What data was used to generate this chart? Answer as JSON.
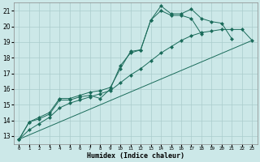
{
  "xlabel": "Humidex (Indice chaleur)",
  "bg_color": "#cce8e8",
  "grid_color": "#aacccc",
  "line_color": "#1a6b5a",
  "xlim": [
    -0.5,
    23.5
  ],
  "ylim": [
    12.5,
    21.5
  ],
  "yticks": [
    13,
    14,
    15,
    16,
    17,
    18,
    19,
    20,
    21
  ],
  "xticks": [
    0,
    1,
    2,
    3,
    4,
    5,
    6,
    7,
    8,
    9,
    10,
    11,
    12,
    13,
    14,
    15,
    16,
    17,
    18,
    19,
    20,
    21,
    22,
    23
  ],
  "line1_x": [
    0,
    1,
    2,
    3,
    4,
    5,
    6,
    7,
    8,
    9,
    10,
    11,
    12,
    13,
    14,
    15,
    16,
    17,
    18,
    19,
    20,
    21
  ],
  "line1_y": [
    12.8,
    13.9,
    14.1,
    14.4,
    15.3,
    15.3,
    15.5,
    15.6,
    15.4,
    16.0,
    17.5,
    18.3,
    18.5,
    20.4,
    21.3,
    20.8,
    20.8,
    21.1,
    20.5,
    20.3,
    20.2,
    19.2
  ],
  "line2_x": [
    0,
    1,
    2,
    3,
    4,
    5,
    6,
    7,
    8,
    9,
    10,
    11,
    12,
    13,
    14,
    15,
    16,
    17,
    18
  ],
  "line2_y": [
    12.8,
    13.9,
    14.2,
    14.5,
    15.4,
    15.4,
    15.6,
    15.8,
    15.9,
    16.1,
    17.3,
    18.4,
    18.5,
    20.4,
    21.0,
    20.7,
    20.7,
    20.5,
    19.5
  ],
  "line3_x": [
    0,
    1,
    2,
    3,
    4,
    5,
    6,
    7,
    8,
    9,
    10,
    11,
    12,
    13,
    14,
    15,
    16,
    17,
    18,
    19,
    20,
    21,
    22,
    23
  ],
  "line3_y": [
    12.8,
    13.4,
    13.8,
    14.2,
    14.8,
    15.1,
    15.3,
    15.5,
    15.7,
    15.9,
    16.4,
    16.9,
    17.3,
    17.8,
    18.3,
    18.7,
    19.1,
    19.4,
    19.6,
    19.7,
    19.8,
    19.8,
    19.8,
    19.1
  ],
  "line4_x": [
    0,
    23
  ],
  "line4_y": [
    12.8,
    19.1
  ],
  "markersize": 2.5
}
